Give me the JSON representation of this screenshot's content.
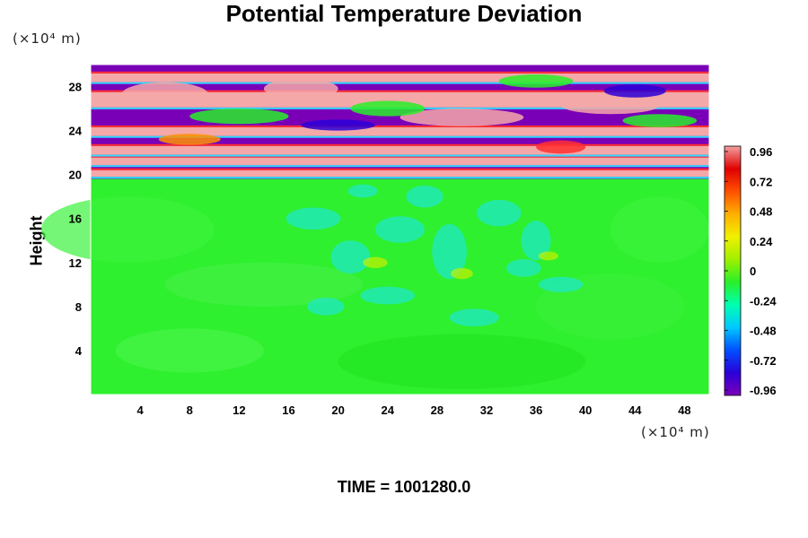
{
  "chart_data": {
    "type": "heatmap",
    "title": "Potential Temperature Deviation",
    "ylabel": "Height",
    "x_unit": "(×10⁴ m)",
    "y_unit": "(×10⁴ m)",
    "x_ticks": [
      4,
      8,
      12,
      16,
      20,
      24,
      28,
      32,
      36,
      40,
      44,
      48
    ],
    "y_ticks": [
      4,
      8,
      12,
      16,
      20,
      24,
      28
    ],
    "xlim": [
      0,
      50
    ],
    "ylim": [
      0,
      30
    ],
    "colorbar": {
      "ticks": [
        0.96,
        0.72,
        0.48,
        0.24,
        0,
        -0.24,
        -0.48,
        -0.72,
        -0.96
      ],
      "tick_labels": [
        "0.96",
        "0.72",
        "0.48",
        "0.24",
        "0",
        "-0.24",
        "-0.48",
        "-0.72",
        "-0.96"
      ],
      "range": [
        -0.96,
        0.96
      ],
      "placement": "right"
    },
    "field_regions": [
      {
        "y_range": [
          0,
          19.5
        ],
        "dominant_value": 0,
        "description_level": "near-zero with small negative (cyan) eddies around x 18-40, y 6-20"
      },
      {
        "y_range": [
          19.5,
          21
        ],
        "dominant_value": 0.96,
        "description_level": "alternating bands"
      },
      {
        "y_range": [
          21,
          30
        ],
        "dominant_value": -0.96,
        "description_level": "alternating strong positive and negative bands"
      }
    ],
    "colors": {
      "colormap": [
        "#7a00b8",
        "#2a00d8",
        "#0050ff",
        "#00c8ff",
        "#00ffb0",
        "#28f028",
        "#a0f000",
        "#f0f000",
        "#ffb000",
        "#ff5000",
        "#e00000",
        "#f4a0a0"
      ]
    }
  },
  "footer": {
    "time_label": "TIME = 1001280.0"
  }
}
